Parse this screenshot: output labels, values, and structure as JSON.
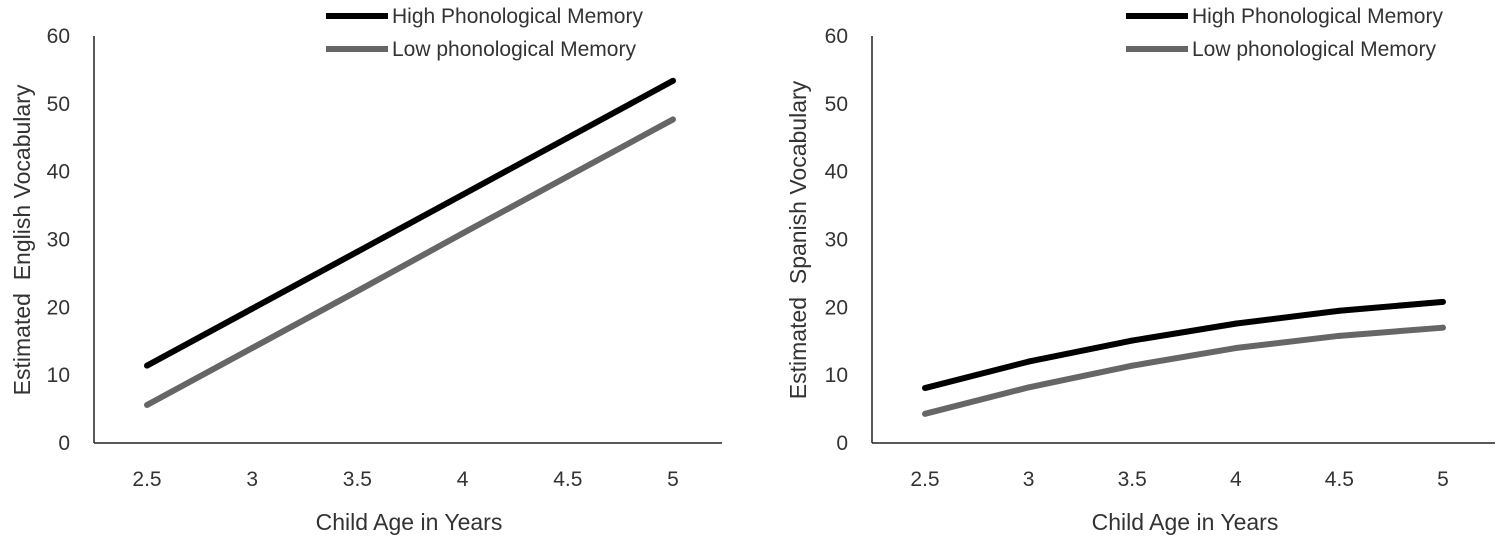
{
  "chart_data": [
    {
      "type": "line",
      "title": "",
      "xlabel": "Child Age in Years",
      "ylabel": "Estimated  English Vocabulary",
      "categories": [
        "2.5",
        "3",
        "3.5",
        "4",
        "4.5",
        "5"
      ],
      "x": [
        2.5,
        3,
        3.5,
        4,
        4.5,
        5
      ],
      "yticks": [
        "0",
        "10",
        "20",
        "30",
        "40",
        "50",
        "60"
      ],
      "ylim": [
        0,
        60
      ],
      "grid": false,
      "legend_position": "top",
      "series": [
        {
          "name": "High Phonological Memory",
          "color": "#000000",
          "values": [
            11.4,
            19.8,
            28.2,
            36.6,
            45.0,
            53.4
          ]
        },
        {
          "name": "Low phonological Memory",
          "color": "#666666",
          "values": [
            5.6,
            14.0,
            22.4,
            30.9,
            39.3,
            47.7
          ]
        }
      ]
    },
    {
      "type": "line",
      "title": "",
      "xlabel": "Child Age in Years",
      "ylabel": "Estimated  Spanish Vocabulary",
      "categories": [
        "2.5",
        "3",
        "3.5",
        "4",
        "4.5",
        "5"
      ],
      "x": [
        2.5,
        3,
        3.5,
        4,
        4.5,
        5
      ],
      "yticks": [
        "0",
        "10",
        "20",
        "30",
        "40",
        "50",
        "60"
      ],
      "ylim": [
        0,
        60
      ],
      "grid": false,
      "legend_position": "top",
      "series": [
        {
          "name": "High Phonological Memory",
          "color": "#000000",
          "values": [
            8.1,
            12.0,
            15.1,
            17.6,
            19.5,
            20.8
          ]
        },
        {
          "name": "Low phonological Memory",
          "color": "#666666",
          "values": [
            4.3,
            8.2,
            11.4,
            14.0,
            15.8,
            17.0
          ]
        }
      ]
    }
  ]
}
